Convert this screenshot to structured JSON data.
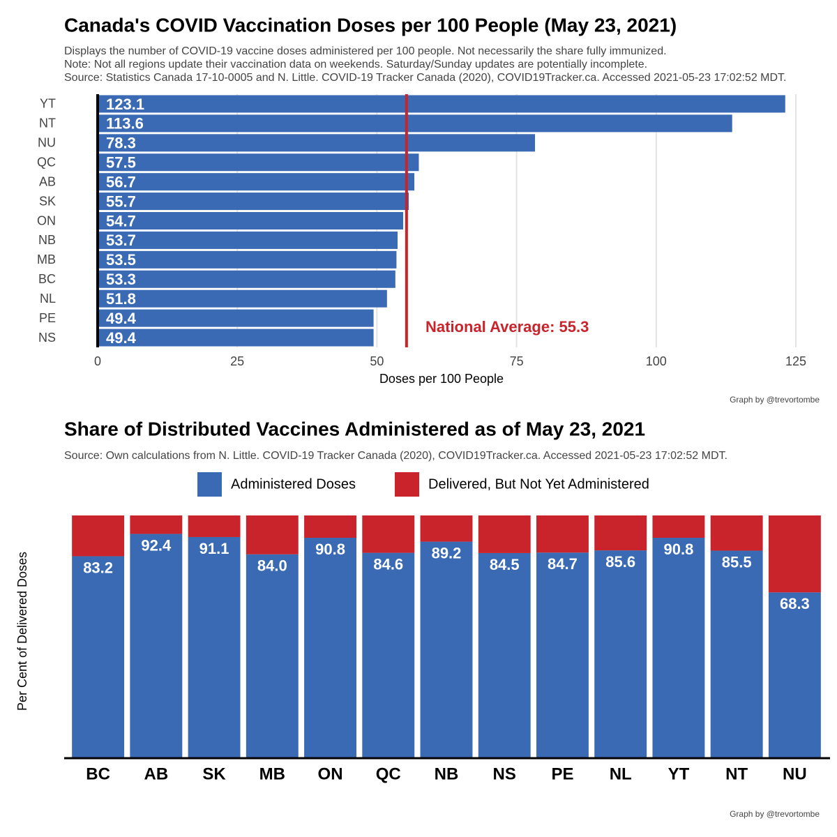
{
  "chart_data": [
    {
      "type": "bar",
      "orientation": "horizontal",
      "title": "Canada's COVID Vaccination Doses per 100 People (May 23, 2021)",
      "subtitle": [
        "Displays the number of COVID-19 vaccine doses administered per 100 people. Not necessarily the share fully immunized.",
        "Note: Not all regions update their vaccination data on weekends. Saturday/Sunday updates are potentially incomplete.",
        "Source: Statistics Canada 17-10-0005 and N. Little. COVID-19 Tracker Canada (2020), COVID19Tracker.ca. Accessed 2021-05-23 17:02:52 MDT."
      ],
      "categories": [
        "YT",
        "NT",
        "NU",
        "QC",
        "AB",
        "SK",
        "ON",
        "NB",
        "MB",
        "BC",
        "NL",
        "PE",
        "NS"
      ],
      "values": [
        123.1,
        113.6,
        78.3,
        57.5,
        56.7,
        55.7,
        54.7,
        53.7,
        53.5,
        53.3,
        51.8,
        49.4,
        49.4
      ],
      "color": "#3a6ab3",
      "xlim": [
        0,
        125
      ],
      "xticks": [
        0,
        25,
        50,
        75,
        100,
        125
      ],
      "grid": true,
      "xlabel": "Doses per 100 People",
      "reference_line": {
        "value": 55.3,
        "color": "#c9242b",
        "label": "National Average: 55.3"
      },
      "caption": "Graph by @trevortombe"
    },
    {
      "type": "bar",
      "stacked": true,
      "title": "Share of Distributed Vaccines Administered as of May 23, 2021",
      "subtitle": "Source: Own calculations from N. Little. COVID-19 Tracker Canada (2020), COVID19Tracker.ca. Accessed 2021-05-23 17:02:52 MDT.",
      "categories": [
        "BC",
        "AB",
        "SK",
        "MB",
        "ON",
        "QC",
        "NB",
        "NS",
        "PE",
        "NL",
        "YT",
        "NT",
        "NU"
      ],
      "series": [
        {
          "name": "Administered Doses",
          "color": "#3a6ab3",
          "values": [
            83.2,
            92.4,
            91.1,
            84.0,
            90.8,
            84.6,
            89.2,
            84.5,
            84.7,
            85.6,
            90.8,
            85.5,
            68.3
          ],
          "value_labels": [
            "83.2",
            "92.4",
            "91.1",
            "84.0",
            "90.8",
            "84.6",
            "89.2",
            "84.5",
            "84.7",
            "85.6",
            "90.8",
            "85.5",
            "68.3"
          ]
        },
        {
          "name": "Delivered, But Not Yet Administered",
          "color": "#c9242b",
          "values": [
            16.8,
            7.6,
            8.9,
            16.0,
            9.2,
            15.4,
            10.8,
            15.5,
            15.3,
            14.4,
            9.2,
            14.5,
            31.7
          ]
        }
      ],
      "ylim": [
        0,
        100
      ],
      "ylabel": "Per Cent of Delivered Doses",
      "legend": "top",
      "caption": "Graph by @trevortombe"
    }
  ]
}
